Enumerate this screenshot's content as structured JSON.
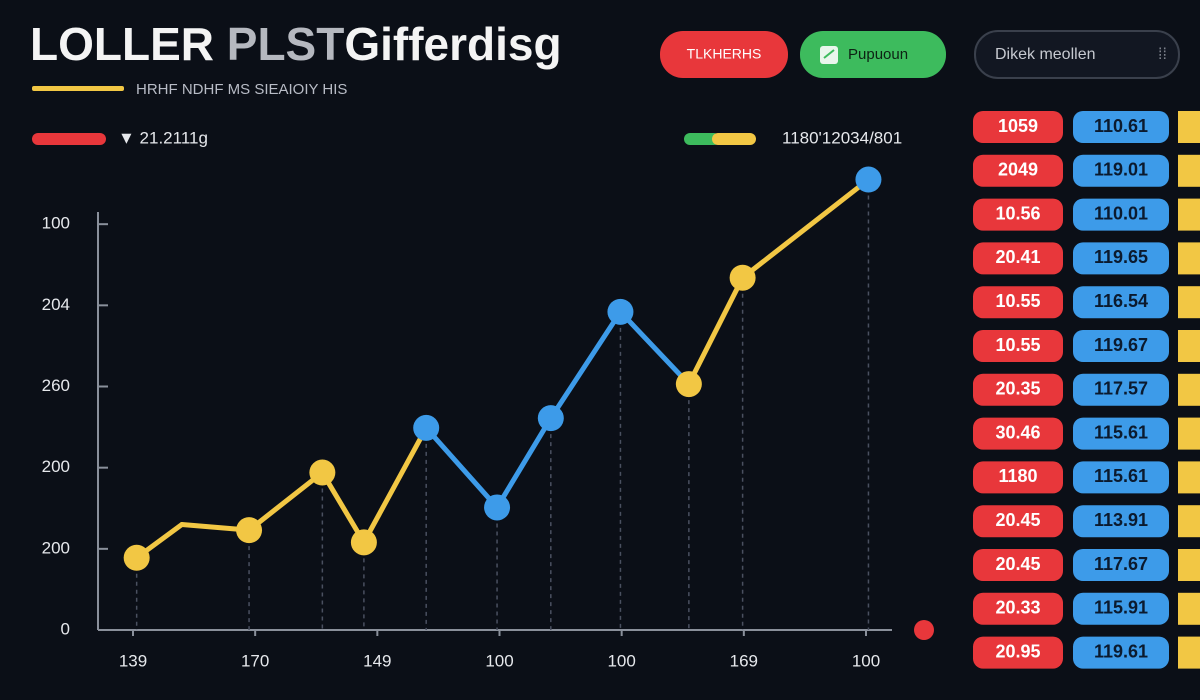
{
  "header": {
    "title_parts": [
      "LOLLER",
      "PLST",
      "Gifferdisg"
    ],
    "subtitle": "HRHF NDHF MS SIEAIOIY HIS"
  },
  "buttons": [
    "TLKHERHS",
    "Pupuoun",
    "Dikek meollen"
  ],
  "legend": [
    "▼ 21.2111g",
    "1180'12034/801"
  ],
  "chart_data": {
    "type": "line",
    "xlim": [
      0,
      6
    ],
    "xticks": [
      {
        "value": 0,
        "label": "139"
      },
      {
        "value": 1,
        "label": "170"
      },
      {
        "value": 2,
        "label": "149"
      },
      {
        "value": 3,
        "label": "100"
      },
      {
        "value": 4,
        "label": "100"
      },
      {
        "value": 5,
        "label": "169"
      },
      {
        "value": 6,
        "label": "100"
      }
    ],
    "ylim": [
      0,
      5.15
    ],
    "yticks": [
      0,
      {
        "value": 1,
        "label": "200"
      },
      {
        "value": 2,
        "label": "200"
      },
      {
        "value": 3,
        "label": "260"
      },
      {
        "value": 4,
        "label": "204"
      },
      {
        "value": 5,
        "label": "100"
      }
    ],
    "series": [
      {
        "x": [
          0.03,
          0.4,
          0.95,
          1.55,
          1.89,
          2.4,
          2.98,
          3.42,
          3.99,
          4.55,
          4.99,
          6.02
        ],
        "values": [
          0.89,
          1.3,
          1.23,
          1.94,
          1.08,
          2.49,
          1.51,
          2.61,
          3.92,
          3.03,
          4.34,
          5.55
        ],
        "marker_colors": [
          "#f2c744",
          null,
          "#f2c744",
          "#f2c744",
          "#f2c744",
          "#3d9be9",
          "#3d9be9",
          "#3d9be9",
          "#3d9be9",
          "#f2c744",
          "#f2c744",
          "#3d9be9"
        ]
      }
    ]
  },
  "table": {
    "rows": [
      [
        "1059",
        "110.61"
      ],
      [
        "2049",
        "119.01"
      ],
      [
        "10.56",
        "110.01"
      ],
      [
        "20.41",
        "119.65"
      ],
      [
        "10.55",
        "116.54"
      ],
      [
        "10.55",
        "119.67"
      ],
      [
        "20.35",
        "117.57"
      ],
      [
        "30.46",
        "115.61"
      ],
      [
        "1180",
        "115.61"
      ],
      [
        "20.45",
        "113.91"
      ],
      [
        "20.45",
        "117.67"
      ],
      [
        "20.33",
        "115.91"
      ],
      [
        "20.95",
        "119.61"
      ]
    ]
  }
}
